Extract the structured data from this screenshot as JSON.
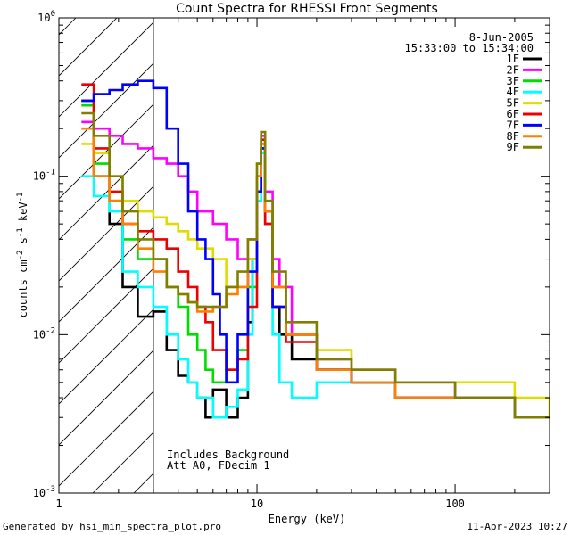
{
  "chart_data": {
    "type": "line",
    "title": "Count Spectra for RHESSI Front Segments",
    "xlabel": "Energy (keV)",
    "ylabel_parts": [
      "counts cm",
      "-2",
      " s",
      "-1",
      " keV",
      "-1"
    ],
    "xscale": "log",
    "yscale": "log",
    "xlim": [
      1,
      300
    ],
    "ylim": [
      0.001,
      1
    ],
    "x_ticks": [
      {
        "value": 1,
        "label": "1"
      },
      {
        "value": 10,
        "label": "10"
      },
      {
        "value": 100,
        "label": "100"
      }
    ],
    "y_ticks": [
      {
        "value": 0.001,
        "base": "10",
        "exp": "-3"
      },
      {
        "value": 0.01,
        "base": "10",
        "exp": "-2"
      },
      {
        "value": 0.1,
        "base": "10",
        "exp": "-1"
      },
      {
        "value": 1,
        "base": "10",
        "exp": "0"
      }
    ],
    "attenuator_boundary_kev": 3,
    "date": "8-Jun-2005",
    "time_range": "15:33:00 to 15:34:00",
    "annotations": [
      "Includes Background",
      "Att A0, FDecim 1"
    ],
    "series": [
      {
        "name": "1F",
        "color": "#000000",
        "points": [
          [
            1.3,
            0.3
          ],
          [
            1.5,
            0.1
          ],
          [
            1.8,
            0.05
          ],
          [
            2.1,
            0.02
          ],
          [
            2.5,
            0.013
          ],
          [
            3,
            0.014
          ],
          [
            3.5,
            0.008
          ],
          [
            4,
            0.0055
          ],
          [
            4.5,
            0.005
          ],
          [
            5,
            0.004
          ],
          [
            5.5,
            0.003
          ],
          [
            6,
            0.0045
          ],
          [
            7,
            0.003
          ],
          [
            8,
            0.004
          ],
          [
            9,
            0.012
          ],
          [
            9.5,
            0.03
          ],
          [
            10,
            0.08
          ],
          [
            10.5,
            0.15
          ],
          [
            11,
            0.05
          ],
          [
            12,
            0.015
          ],
          [
            13,
            0.01
          ],
          [
            15,
            0.007
          ],
          [
            20,
            0.006
          ],
          [
            30,
            0.005
          ],
          [
            50,
            0.004
          ],
          [
            100,
            0.004
          ],
          [
            200,
            0.003
          ],
          [
            300,
            0.003
          ]
        ]
      },
      {
        "name": "2F",
        "color": "#ff00ff",
        "points": [
          [
            1.3,
            0.22
          ],
          [
            1.5,
            0.2
          ],
          [
            1.8,
            0.18
          ],
          [
            2.1,
            0.16
          ],
          [
            2.5,
            0.15
          ],
          [
            3,
            0.13
          ],
          [
            3.5,
            0.12
          ],
          [
            4,
            0.1
          ],
          [
            4.5,
            0.08
          ],
          [
            5,
            0.06
          ],
          [
            6,
            0.05
          ],
          [
            7,
            0.04
          ],
          [
            8,
            0.03
          ],
          [
            9,
            0.03
          ],
          [
            10,
            0.1
          ],
          [
            10.5,
            0.18
          ],
          [
            11,
            0.08
          ],
          [
            12,
            0.03
          ],
          [
            13,
            0.02
          ],
          [
            15,
            0.01
          ],
          [
            20,
            0.007
          ],
          [
            30,
            0.006
          ],
          [
            50,
            0.005
          ],
          [
            100,
            0.004
          ],
          [
            200,
            0.003
          ],
          [
            300,
            0.003
          ]
        ]
      },
      {
        "name": "3F",
        "color": "#00dd00",
        "points": [
          [
            1.3,
            0.28
          ],
          [
            1.5,
            0.12
          ],
          [
            1.8,
            0.07
          ],
          [
            2.1,
            0.04
          ],
          [
            2.5,
            0.03
          ],
          [
            3,
            0.03
          ],
          [
            3.5,
            0.02
          ],
          [
            4,
            0.015
          ],
          [
            4.5,
            0.01
          ],
          [
            5,
            0.008
          ],
          [
            5.5,
            0.006
          ],
          [
            6,
            0.005
          ],
          [
            7,
            0.006
          ],
          [
            8,
            0.008
          ],
          [
            9,
            0.02
          ],
          [
            10,
            0.1
          ],
          [
            10.5,
            0.15
          ],
          [
            11,
            0.06
          ],
          [
            12,
            0.02
          ],
          [
            14,
            0.01
          ],
          [
            20,
            0.006
          ],
          [
            30,
            0.005
          ],
          [
            50,
            0.004
          ],
          [
            100,
            0.004
          ],
          [
            200,
            0.003
          ],
          [
            300,
            0.003
          ]
        ]
      },
      {
        "name": "4F",
        "color": "#00ffff",
        "points": [
          [
            1.3,
            0.1
          ],
          [
            1.5,
            0.075
          ],
          [
            1.8,
            0.06
          ],
          [
            2.1,
            0.025
          ],
          [
            2.5,
            0.02
          ],
          [
            3,
            0.015
          ],
          [
            3.5,
            0.01
          ],
          [
            4,
            0.007
          ],
          [
            4.5,
            0.005
          ],
          [
            5,
            0.004
          ],
          [
            6,
            0.003
          ],
          [
            7,
            0.0035
          ],
          [
            8,
            0.0045
          ],
          [
            9,
            0.01
          ],
          [
            9.5,
            0.03
          ],
          [
            10,
            0.07
          ],
          [
            10.5,
            0.14
          ],
          [
            11,
            0.05
          ],
          [
            12,
            0.01
          ],
          [
            13,
            0.005
          ],
          [
            15,
            0.004
          ],
          [
            20,
            0.005
          ],
          [
            30,
            0.005
          ],
          [
            50,
            0.004
          ],
          [
            100,
            0.004
          ],
          [
            200,
            0.003
          ],
          [
            300,
            0.003
          ]
        ]
      },
      {
        "name": "5F",
        "color": "#dddd00",
        "points": [
          [
            1.3,
            0.16
          ],
          [
            1.5,
            0.14
          ],
          [
            1.8,
            0.1
          ],
          [
            2.1,
            0.07
          ],
          [
            2.5,
            0.06
          ],
          [
            3,
            0.055
          ],
          [
            3.5,
            0.05
          ],
          [
            4,
            0.045
          ],
          [
            4.5,
            0.04
          ],
          [
            5,
            0.035
          ],
          [
            6,
            0.03
          ],
          [
            7,
            0.02
          ],
          [
            8,
            0.02
          ],
          [
            9,
            0.03
          ],
          [
            10,
            0.12
          ],
          [
            10.5,
            0.16
          ],
          [
            11,
            0.06
          ],
          [
            12,
            0.02
          ],
          [
            14,
            0.01
          ],
          [
            20,
            0.008
          ],
          [
            30,
            0.006
          ],
          [
            50,
            0.005
          ],
          [
            100,
            0.005
          ],
          [
            200,
            0.004
          ],
          [
            300,
            0.003
          ]
        ]
      },
      {
        "name": "6F",
        "color": "#ee0000",
        "points": [
          [
            1.3,
            0.38
          ],
          [
            1.5,
            0.15
          ],
          [
            1.8,
            0.08
          ],
          [
            2.1,
            0.05
          ],
          [
            2.5,
            0.045
          ],
          [
            3,
            0.04
          ],
          [
            3.5,
            0.035
          ],
          [
            4,
            0.025
          ],
          [
            4.5,
            0.02
          ],
          [
            5,
            0.015
          ],
          [
            5.5,
            0.012
          ],
          [
            6,
            0.008
          ],
          [
            7,
            0.006
          ],
          [
            8,
            0.007
          ],
          [
            9,
            0.015
          ],
          [
            10,
            0.08
          ],
          [
            10.5,
            0.17
          ],
          [
            11,
            0.05
          ],
          [
            12,
            0.015
          ],
          [
            14,
            0.009
          ],
          [
            20,
            0.006
          ],
          [
            30,
            0.005
          ],
          [
            50,
            0.004
          ],
          [
            100,
            0.004
          ],
          [
            200,
            0.003
          ],
          [
            300,
            0.003
          ]
        ]
      },
      {
        "name": "7F",
        "color": "#0000ff",
        "points": [
          [
            1.3,
            0.3
          ],
          [
            1.5,
            0.33
          ],
          [
            1.8,
            0.35
          ],
          [
            2.1,
            0.38
          ],
          [
            2.5,
            0.4
          ],
          [
            3,
            0.36
          ],
          [
            3.5,
            0.2
          ],
          [
            4,
            0.12
          ],
          [
            4.5,
            0.06
          ],
          [
            5,
            0.04
          ],
          [
            5.5,
            0.03
          ],
          [
            6,
            0.018
          ],
          [
            6.5,
            0.01
          ],
          [
            7,
            0.005
          ],
          [
            8,
            0.01
          ],
          [
            9,
            0.025
          ],
          [
            10,
            0.08
          ],
          [
            10.5,
            0.15
          ],
          [
            11,
            0.06
          ],
          [
            12,
            0.015
          ],
          [
            14,
            0.01
          ],
          [
            20,
            0.006
          ],
          [
            30,
            0.005
          ],
          [
            50,
            0.004
          ],
          [
            100,
            0.004
          ],
          [
            200,
            0.003
          ],
          [
            300,
            0.003
          ]
        ]
      },
      {
        "name": "8F",
        "color": "#ff8000",
        "points": [
          [
            1.3,
            0.2
          ],
          [
            1.5,
            0.1
          ],
          [
            1.8,
            0.07
          ],
          [
            2.1,
            0.05
          ],
          [
            2.5,
            0.035
          ],
          [
            3,
            0.025
          ],
          [
            3.5,
            0.02
          ],
          [
            4,
            0.018
          ],
          [
            4.5,
            0.016
          ],
          [
            5,
            0.014
          ],
          [
            6,
            0.015
          ],
          [
            7,
            0.018
          ],
          [
            8,
            0.02
          ],
          [
            9,
            0.04
          ],
          [
            10,
            0.1
          ],
          [
            10.5,
            0.16
          ],
          [
            11,
            0.06
          ],
          [
            12,
            0.02
          ],
          [
            14,
            0.01
          ],
          [
            20,
            0.006
          ],
          [
            30,
            0.005
          ],
          [
            50,
            0.004
          ],
          [
            100,
            0.004
          ],
          [
            200,
            0.003
          ],
          [
            300,
            0.003
          ]
        ]
      },
      {
        "name": "9F",
        "color": "#808000",
        "points": [
          [
            1.3,
            0.25
          ],
          [
            1.5,
            0.18
          ],
          [
            1.8,
            0.1
          ],
          [
            2.1,
            0.06
          ],
          [
            2.5,
            0.04
          ],
          [
            3,
            0.03
          ],
          [
            3.5,
            0.02
          ],
          [
            4,
            0.018
          ],
          [
            4.5,
            0.016
          ],
          [
            5,
            0.015
          ],
          [
            6,
            0.015
          ],
          [
            7,
            0.02
          ],
          [
            8,
            0.025
          ],
          [
            9,
            0.04
          ],
          [
            10,
            0.12
          ],
          [
            10.5,
            0.19
          ],
          [
            11,
            0.07
          ],
          [
            12,
            0.025
          ],
          [
            14,
            0.012
          ],
          [
            20,
            0.007
          ],
          [
            30,
            0.006
          ],
          [
            50,
            0.005
          ],
          [
            100,
            0.004
          ],
          [
            200,
            0.003
          ],
          [
            300,
            0.003
          ]
        ]
      }
    ]
  },
  "footer": {
    "left": "Generated by hsi_min_spectra_plot.pro",
    "right": "11-Apr-2023 10:27"
  }
}
